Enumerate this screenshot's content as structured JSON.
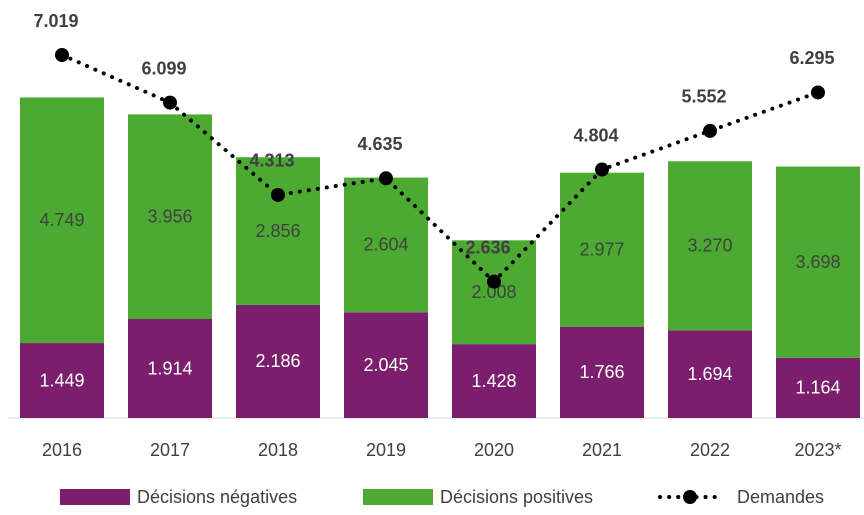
{
  "chart_data": {
    "type": "bar",
    "stacked": true,
    "categories": [
      "2016",
      "2017",
      "2018",
      "2019",
      "2020",
      "2021",
      "2022",
      "2023*"
    ],
    "series": [
      {
        "name": "Décisions négatives",
        "color": "#7b1e6d",
        "values": [
          1449,
          1914,
          2186,
          2045,
          1428,
          1766,
          1694,
          1164
        ],
        "value_labels": [
          "1.449",
          "1.914",
          "2.186",
          "2.045",
          "1.428",
          "1.766",
          "1.694",
          "1.164"
        ]
      },
      {
        "name": "Décisions positives",
        "color": "#4caa32",
        "values": [
          4749,
          3956,
          2856,
          2604,
          2008,
          2977,
          3270,
          3698
        ],
        "value_labels": [
          "4.749",
          "3.956",
          "2.856",
          "2.604",
          "2.008",
          "2.977",
          "3.270",
          "3.698"
        ]
      },
      {
        "name": "Demandes",
        "type": "line",
        "color": "#000000",
        "values": [
          7019,
          6099,
          4313,
          4635,
          2636,
          4804,
          5552,
          6295
        ],
        "value_labels": [
          "7.019",
          "6.099",
          "4.313",
          "4.635",
          "2.636",
          "4.804",
          "5.552",
          "6.295"
        ]
      }
    ]
  }
}
